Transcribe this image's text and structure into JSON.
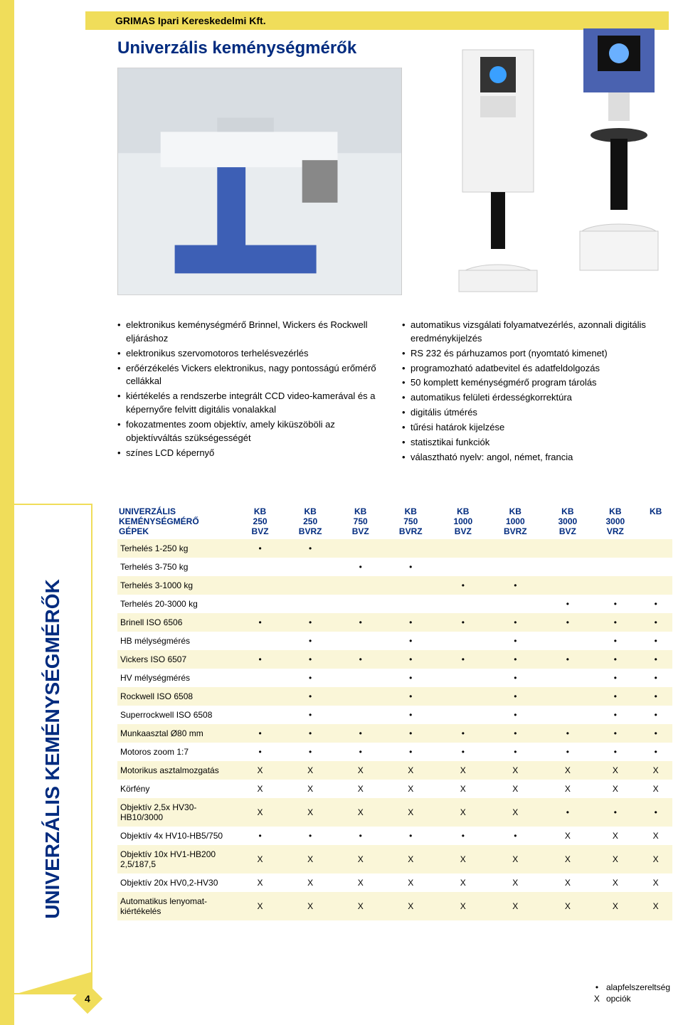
{
  "colors": {
    "yellow": "#f0dd5a",
    "blue": "#002b7f",
    "stripe": "#faf6d8",
    "white": "#ffffff",
    "border": "#cccccc"
  },
  "fonts": {
    "body_size": 13,
    "title_size": 24,
    "table_size": 12,
    "sidebar_size": 28
  },
  "header": {
    "company": "GRIMAS Ipari Kereskedelmi Kft."
  },
  "title": "Univerzális keménységmérők",
  "sidebar_label": "UNIVERZÁLIS KEMÉNYSÉGMÉRŐK",
  "page_number": "4",
  "images": {
    "main_photo_caption": "",
    "machine_left_caption": "",
    "machine_right_caption": ""
  },
  "features_left": [
    "elektronikus keménységmérő Brinnel, Wickers és Rockwell eljáráshoz",
    "elektronikus szervomotoros terhelésvezérlés",
    "erőérzékelés Vickers elektronikus, nagy pontosságú erőmérő cellákkal",
    "kiértékelés a rendszerbe integrált CCD video-kamerával és a képernyőre felvitt digitális vonalakkal",
    "fokozatmentes zoom objektív, amely kiküszöböli az objektívváltás szükségességét",
    "színes LCD képernyő"
  ],
  "features_right": [
    "automatikus vizsgálati folyamatvezérlés, azonnali digitális eredménykijelzés",
    "RS 232 és párhuzamos port (nyomtató kimenet)",
    "programozható adatbevitel és adatfeldolgozás",
    "50 komplett keménységmérő program tárolás",
    "automatikus felületi érdességkorrektúra",
    "digitális útmérés",
    "tűrési határok kijelzése",
    "statisztikai funkciók",
    "választható nyelv: angol, német, francia"
  ],
  "table": {
    "header_label": "UNIVERZÁLIS KEMÉNYSÉGMÉRŐ GÉPEK",
    "columns": [
      {
        "l1": "KB",
        "l2": "250",
        "l3": "BVZ"
      },
      {
        "l1": "KB",
        "l2": "250",
        "l3": "BVRZ"
      },
      {
        "l1": "KB",
        "l2": "750",
        "l3": "BVZ"
      },
      {
        "l1": "KB",
        "l2": "750",
        "l3": "BVRZ"
      },
      {
        "l1": "KB",
        "l2": "1000",
        "l3": "BVZ"
      },
      {
        "l1": "KB",
        "l2": "1000",
        "l3": "BVRZ"
      },
      {
        "l1": "KB",
        "l2": "3000",
        "l3": "BVZ"
      },
      {
        "l1": "KB",
        "l2": "3000",
        "l3": "VRZ"
      },
      {
        "l1": "KB",
        "l2": "",
        "l3": ""
      }
    ],
    "rows": [
      {
        "label": "Terhelés 1-250 kg",
        "cells": [
          "•",
          "•",
          "",
          "",
          "",
          "",
          "",
          "",
          ""
        ]
      },
      {
        "label": "Terhelés 3-750 kg",
        "cells": [
          "",
          "",
          "•",
          "•",
          "",
          "",
          "",
          "",
          ""
        ]
      },
      {
        "label": "Terhelés 3-1000 kg",
        "cells": [
          "",
          "",
          "",
          "",
          "•",
          "•",
          "",
          "",
          ""
        ]
      },
      {
        "label": "Terhelés 20-3000 kg",
        "cells": [
          "",
          "",
          "",
          "",
          "",
          "",
          "•",
          "•",
          "•"
        ]
      },
      {
        "label": "Brinell ISO 6506",
        "cells": [
          "•",
          "•",
          "•",
          "•",
          "•",
          "•",
          "•",
          "•",
          "•"
        ]
      },
      {
        "label": "HB mélységmérés",
        "cells": [
          "",
          "•",
          "",
          "•",
          "",
          "•",
          "",
          "•",
          "•"
        ]
      },
      {
        "label": "Vickers ISO 6507",
        "cells": [
          "•",
          "•",
          "•",
          "•",
          "•",
          "•",
          "•",
          "•",
          "•"
        ]
      },
      {
        "label": "HV mélységmérés",
        "cells": [
          "",
          "•",
          "",
          "•",
          "",
          "•",
          "",
          "•",
          "•"
        ]
      },
      {
        "label": "Rockwell ISO 6508",
        "cells": [
          "",
          "•",
          "",
          "•",
          "",
          "•",
          "",
          "•",
          "•"
        ]
      },
      {
        "label": "Superrockwell ISO 6508",
        "cells": [
          "",
          "•",
          "",
          "•",
          "",
          "•",
          "",
          "•",
          "•"
        ]
      },
      {
        "label": "Munkaasztal Ø80 mm",
        "cells": [
          "•",
          "•",
          "•",
          "•",
          "•",
          "•",
          "•",
          "•",
          "•"
        ]
      },
      {
        "label": "Motoros zoom 1:7",
        "cells": [
          "•",
          "•",
          "•",
          "•",
          "•",
          "•",
          "•",
          "•",
          "•"
        ]
      },
      {
        "label": "Motorikus asztalmozgatás",
        "cells": [
          "X",
          "X",
          "X",
          "X",
          "X",
          "X",
          "X",
          "X",
          "X"
        ]
      },
      {
        "label": "Körfény",
        "cells": [
          "X",
          "X",
          "X",
          "X",
          "X",
          "X",
          "X",
          "X",
          "X"
        ]
      },
      {
        "label": "Objektív 2,5x HV30-HB10/3000",
        "cells": [
          "X",
          "X",
          "X",
          "X",
          "X",
          "X",
          "•",
          "•",
          "•"
        ]
      },
      {
        "label": "Objektív 4x HV10-HB5/750",
        "cells": [
          "•",
          "•",
          "•",
          "•",
          "•",
          "•",
          "X",
          "X",
          "X"
        ]
      },
      {
        "label": "Objektív 10x HV1-HB200 2,5/187,5",
        "cells": [
          "X",
          "X",
          "X",
          "X",
          "X",
          "X",
          "X",
          "X",
          "X"
        ]
      },
      {
        "label": "Objektív 20x HV0,2-HV30",
        "cells": [
          "X",
          "X",
          "X",
          "X",
          "X",
          "X",
          "X",
          "X",
          "X"
        ]
      },
      {
        "label": "Automatikus lenyomat-kiértékelés",
        "cells": [
          "X",
          "X",
          "X",
          "X",
          "X",
          "X",
          "X",
          "X",
          "X"
        ]
      }
    ]
  },
  "legend": {
    "dot": "alapfelszereltség",
    "x": "opciók"
  }
}
